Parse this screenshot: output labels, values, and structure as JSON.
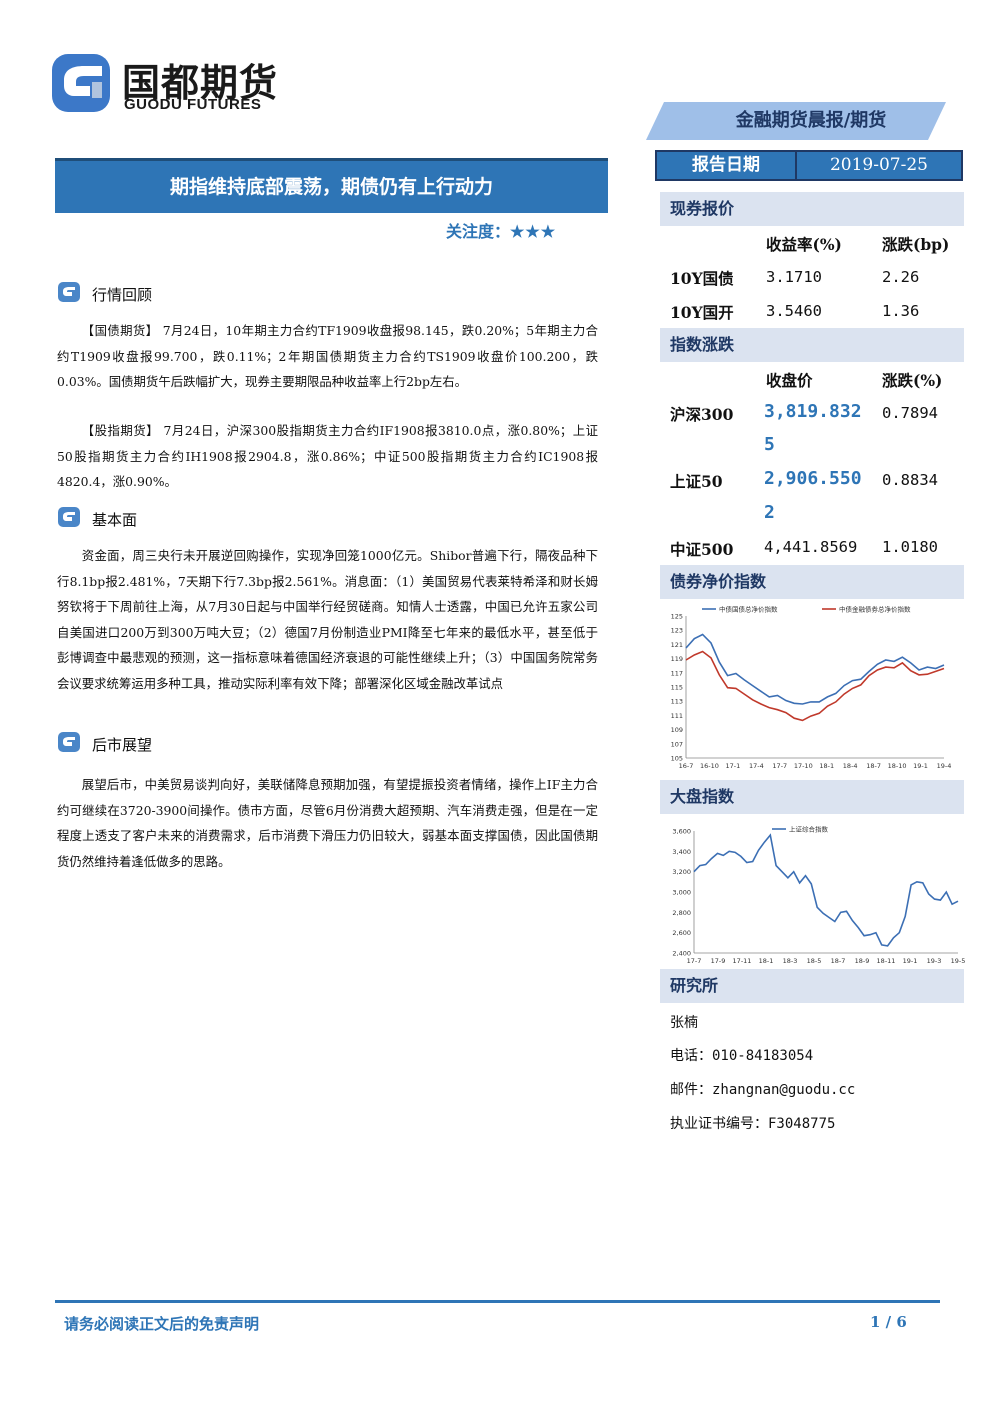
{
  "brand": {
    "name_cn": "国都期货",
    "name_en": "GUODU FUTURES",
    "primary_color": "#2e75b6",
    "dark_color": "#1f3864"
  },
  "report_type": "金融期货晨报/期货",
  "title": "期指维持底部震荡，期债仍有上行动力",
  "attention": {
    "label": "关注度：",
    "stars": "★★★"
  },
  "sections": [
    {
      "heading": "行情回顾",
      "paragraphs": [
        "【国债期货】 7月24日，10年期主力合约TF1909收盘报98.145，跌0.20%；5年期主力合约T1909收盘报99.700，跌0.11%；2年期国债期货主力合约TS1909收盘价100.200，跌0.03%。国债期货午后跌幅扩大，现券主要期限品种收益率上行2bp左右。",
        "【股指期货】 7月24日，沪深300股指期货主力合约IF1908报3810.0点，涨0.80%；上证50股指期货主力合约IH1908报2904.8，涨0.86%；中证500股指期货主力合约IC1908报4820.4，涨0.90%。"
      ]
    },
    {
      "heading": "基本面",
      "paragraphs": [
        "资金面，周三央行未开展逆回购操作，实现净回笼1000亿元。Shibor普遍下行，隔夜品种下行8.1bp报2.481%，7天期下行7.3bp报2.561%。消息面：（1）美国贸易代表莱特希泽和财长姆努钦将于下周前往上海，从7月30日起与中国举行经贸磋商。知情人士透露，中国已允许五家公司自美国进口200万到300万吨大豆；（2）德国7月份制造业PMI降至七年来的最低水平，甚至低于彭博调查中最悲观的预测，这一指标意味着德国经济衰退的可能性继续上升；（3）中国国务院常务会议要求统筹运用多种工具，推动实际利率有效下降；部署深化区域金融改革试点"
      ]
    },
    {
      "heading": "后市展望",
      "paragraphs": [
        "展望后市，中美贸易谈判向好，美联储降息预期加强，有望提振投资者情绪，操作上IF主力合约可继续在3720-3900间操作。债市方面，尽管6月份消费大超预期、汽车消费走强，但是在一定程度上透支了客户未来的消费需求，后市消费下滑压力仍旧较大，弱基本面支撑国债，因此国债期货仍然维持着逢低做多的思路。"
      ]
    }
  ],
  "report_date": {
    "label": "报告日期",
    "value": "2019-07-25"
  },
  "spot_quotes": {
    "heading": "现券报价",
    "col1": "收益率(%)",
    "col2": "涨跌(bp)",
    "rows": [
      {
        "name": "10Y国债",
        "yield": "3.1710",
        "change": "2.26"
      },
      {
        "name": "10Y国开",
        "yield": "3.5460",
        "change": "1.36"
      }
    ]
  },
  "index_changes": {
    "heading": "指数涨跌",
    "col1": "收盘价",
    "col2": "涨跌(%)",
    "rows": [
      {
        "name": "沪深300",
        "close_line1": "3,819.832",
        "close_line2": "5",
        "change": "0.7894"
      },
      {
        "name": "上证50",
        "close_line1": "2,906.550",
        "close_line2": "2",
        "change": "0.8834"
      },
      {
        "name": "中证500",
        "close_line1": "4,441.8569",
        "close_line2": "",
        "change": "1.0180"
      }
    ]
  },
  "bond_chart_heading": "债券净价指数",
  "index_chart_heading": "大盘指数",
  "chart_data": [
    {
      "type": "line",
      "ylim": [
        105,
        125
      ],
      "yticks": [
        "105",
        "107",
        "109",
        "111",
        "113",
        "115",
        "117",
        "119",
        "121",
        "123",
        "125"
      ],
      "xticks": [
        "16-7",
        "16-10",
        "17-1",
        "17-4",
        "17-7",
        "17-10",
        "18-1",
        "18-4",
        "18-7",
        "18-10",
        "19-1",
        "19-4"
      ],
      "grid": false,
      "legend": "top",
      "series": [
        {
          "name": "中债国债总净价指数",
          "color": "#3c6fb4",
          "values": [
            120.5,
            121.8,
            122.4,
            121.2,
            118.5,
            116.6,
            116.9,
            116.0,
            115.2,
            114.4,
            113.6,
            113.8,
            113.1,
            112.7,
            112.6,
            112.9,
            112.9,
            113.6,
            114.1,
            115.2,
            115.9,
            116.1,
            117.2,
            118.2,
            118.8,
            118.6,
            119.2,
            118.4,
            117.4,
            117.8,
            117.6,
            118.1
          ]
        },
        {
          "name": "中债金融债券总净价指数",
          "color": "#c0392b",
          "values": [
            118.8,
            119.5,
            120.0,
            119.1,
            116.7,
            114.9,
            114.8,
            114.0,
            113.2,
            112.6,
            112.1,
            111.8,
            111.4,
            110.6,
            110.3,
            110.9,
            111.3,
            112.3,
            112.9,
            114.0,
            114.8,
            115.3,
            116.6,
            117.4,
            117.8,
            117.7,
            118.4,
            117.3,
            116.7,
            116.8,
            117.2,
            117.6
          ]
        }
      ]
    },
    {
      "type": "line",
      "ylim": [
        2400,
        3600
      ],
      "yticks": [
        "2,400",
        "2,600",
        "2,800",
        "3,000",
        "3,200",
        "3,400",
        "3,600"
      ],
      "xticks": [
        "17-7",
        "17-9",
        "17-11",
        "18-1",
        "18-3",
        "18-5",
        "18-7",
        "18-9",
        "18-11",
        "19-1",
        "19-3",
        "19-5"
      ],
      "grid": false,
      "legend": "top",
      "series": [
        {
          "name": "上证综合指数",
          "color": "#3c6fb4",
          "values": [
            3200,
            3260,
            3270,
            3330,
            3380,
            3360,
            3400,
            3390,
            3350,
            3290,
            3300,
            3410,
            3490,
            3560,
            3260,
            3200,
            3140,
            3200,
            3090,
            3160,
            3080,
            2850,
            2790,
            2750,
            2710,
            2800,
            2810,
            2720,
            2650,
            2570,
            2580,
            2600,
            2480,
            2470,
            2550,
            2600,
            2760,
            3070,
            3100,
            3090,
            2980,
            2930,
            2920,
            3000,
            2880,
            2910
          ]
        }
      ]
    }
  ],
  "research": {
    "heading": "研究所",
    "name": "张楠",
    "phone": "电话：010-84183054",
    "email": "邮件：zhangnan@guodu.cc",
    "license": "执业证书编号：F3048775"
  },
  "footer": {
    "disclaimer": "请务必阅读正文后的免责声明",
    "page": "1 / 6"
  }
}
